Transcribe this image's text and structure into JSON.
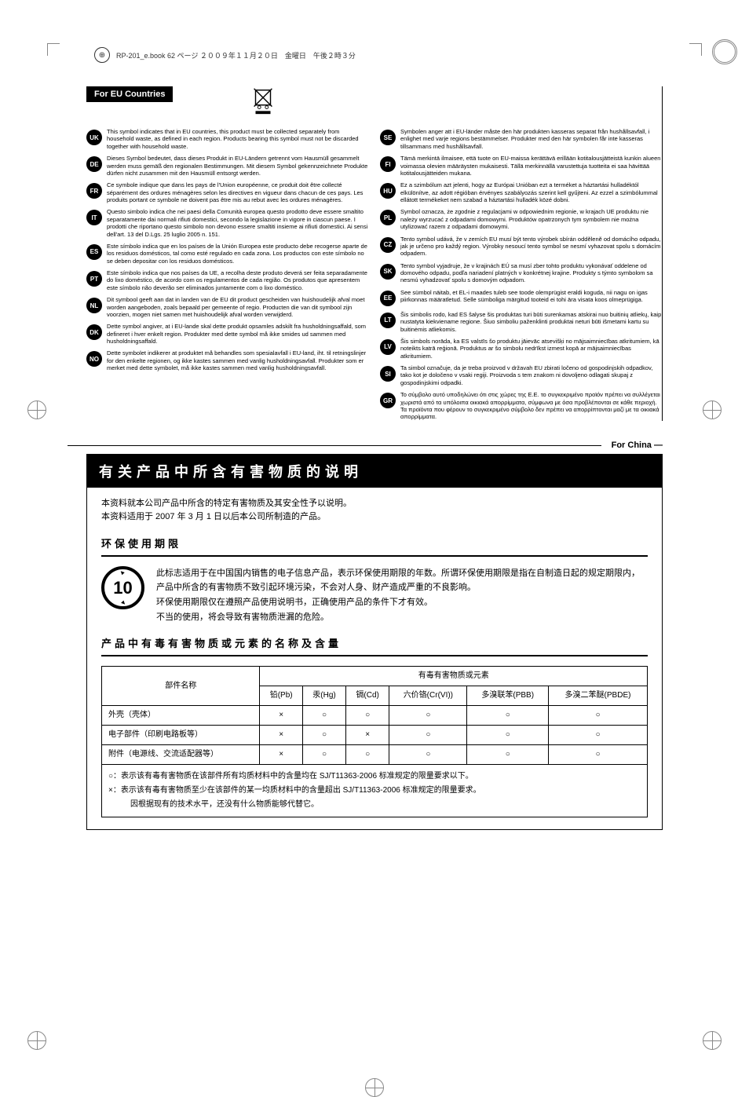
{
  "header": {
    "filename": "RP-201_e.book 62 ページ ２００９年１１月２０日　金曜日　午後２時３分"
  },
  "eu": {
    "badge": "For EU Countries",
    "left": [
      {
        "code": "UK",
        "text": "This symbol indicates that in EU countries, this product must be collected separately from household waste, as defined in each region. Products bearing this symbol must not be discarded together with household waste."
      },
      {
        "code": "DE",
        "text": "Dieses Symbol bedeutet, dass dieses Produkt in EU-Ländern getrennt vom Hausmüll gesammelt werden muss gemäß den regionalen Bestimmungen. Mit diesem Symbol gekennzeichnete Produkte dürfen nicht zusammen mit den Hausmüll entsorgt werden."
      },
      {
        "code": "FR",
        "text": "Ce symbole indique que dans les pays de l'Union européenne, ce produit doit être collecté séparément des ordures ménagères selon les directives en vigueur dans chacun de ces pays. Les produits portant ce symbole ne doivent pas être mis au rebut avec les ordures ménagères."
      },
      {
        "code": "IT",
        "text": "Questo simbolo indica che nei paesi della Comunità europea questo prodotto deve essere smaltito separatamente dai normali rifiuti domestici, secondo la legislazione in vigore in ciascun paese. I prodotti che riportano questo simbolo non devono essere smaltiti insieme ai rifiuti domestici. Ai sensi dell'art. 13 del D.Lgs. 25 luglio 2005 n. 151."
      },
      {
        "code": "ES",
        "text": "Este símbolo indica que en los países de la Unión Europea este producto debe recogerse aparte de los residuos domésticos, tal como esté regulado en cada zona. Los productos con este símbolo no se deben depositar con los residuos domésticos."
      },
      {
        "code": "PT",
        "text": "Este símbolo indica que nos países da UE, a recolha deste produto deverá ser feita separadamente do lixo doméstico, de acordo com os regulamentos de cada região. Os produtos que apresentem este símbolo não deverão ser eliminados juntamente com o lixo doméstico."
      },
      {
        "code": "NL",
        "text": "Dit symbool geeft aan dat in landen van de EU dit product gescheiden van huishoudelijk afval moet worden aangeboden, zoals bepaald per gemeente of regio. Producten die van dit symbool zijn voorzien, mogen niet samen met huishoudelijk afval worden verwijderd."
      },
      {
        "code": "DK",
        "text": "Dette symbol angiver, at i EU-lande skal dette produkt opsamles adskilt fra husholdningsaffald, som defineret i hver enkelt region. Produkter med dette symbol må ikke smides ud sammen med husholdningsaffald."
      },
      {
        "code": "NO",
        "text": "Dette symbolet indikerer at produktet må behandles som spesialavfall i EU-land, iht. til retningslinjer for den enkelte regionen, og ikke kastes sammen med vanlig husholdningsavfall. Produkter som er merket med dette symbolet, må ikke kastes sammen med vanlig husholdningsavfall."
      }
    ],
    "right": [
      {
        "code": "SE",
        "text": "Symbolen anger att i EU-länder måste den här produkten kasseras separat från hushållsavfall, i enlighet med varje regions bestämmelser. Produkter med den här symbolen får inte kasseras tillsammans med hushållsavfall."
      },
      {
        "code": "FI",
        "text": "Tämä merkintä ilmaisee, että tuote on EU-maissa kerättävä erillään kotitalousjätteistä kunkin alueen voimassa olevien määräysten mukaisesti. Tällä merkinnällä varustettuja tuotteita ei saa hävittää kotitalousjätteiden mukana."
      },
      {
        "code": "HU",
        "text": "Ez a szimbólum azt jelenti, hogy az Európai Unióban ezt a terméket a háztartási hulladéktól elkülönítve, az adott régióban érvényes szabályozás szerint kell gyűjteni. Az ezzel a szimbólummal ellátott termékeket nem szabad a háztartási hulladék közé dobni."
      },
      {
        "code": "PL",
        "text": "Symbol oznacza, że zgodnie z regulacjami w odpowiednim regionie, w krajach UE produktu nie należy wyrzucać z odpadami domowymi. Produktów opatrzonych tym symbolem nie można utylizować razem z odpadami domowymi."
      },
      {
        "code": "CZ",
        "text": "Tento symbol udává, že v zemích EU musí být tento výrobek sbírán odděleně od domácího odpadu, jak je určeno pro každý region. Výrobky nesoucí tento symbol se nesmí vyhazovat spolu s domácím odpadem."
      },
      {
        "code": "SK",
        "text": "Tento symbol vyjadruje, že v krajinách EÚ sa musí zber tohto produktu vykonávať oddelene od domového odpadu, podľa nariadení platných v konkrétnej krajine. Produkty s týmto symbolom sa nesmú vyhadzovať spolu s domovým odpadom."
      },
      {
        "code": "EE",
        "text": "See sümbol näitab, et EL-i maades tuleb see toode olemprügist eraldi koguda, nii nagu on igas piirkonnas määratletud. Selle sümboliga märgitud tooteid ei tohi ära visata koos olmeprügiga."
      },
      {
        "code": "LT",
        "text": "Šis simbolis rodo, kad ES šalyse šis produktas turi būti surenkamas atskirai nuo buitinių atliekų, kaip nustatyta kiekviename regione. Šiuo simboliu paženklinti produktai neturi būti išmetami kartu su buitinėmis atliekomis."
      },
      {
        "code": "LV",
        "text": "Šis simbols norāda, ka ES valstīs šo produktu jāievāc atsevišķi no mājsaimniecības atkritumiem, kā noteikts katrā reģionā. Produktus ar šo simbolu nedrīkst izmest kopā ar mājsaimniecības atkritumiem."
      },
      {
        "code": "SI",
        "text": "Ta simbol označuje, da je treba proizvod v državah EU zbirati ločeno od gospodinjskih odpadkov, tako kot je določeno v vsaki regiji. Proizvoda s tem znakom ni dovoljeno odlagati skupaj z gospodinjskimi odpadki."
      },
      {
        "code": "GR",
        "text": "Το σύμβολο αυτό υποδηλώνει ότι στις χώρες της Ε.Ε. το συγκεκριμένο προϊόν πρέπει να συλλέγεται χωριστά από τα υπόλοιπα οικιακά απορρίμματα, σύμφωνα με όσα προβλέπονται σε κάθε περιοχή. Τα προϊόντα που φέρουν το συγκεκριμένο σύμβολο δεν πρέπει να απορρίπτονται μαζί με τα οικιακά απορρίμματα."
      }
    ]
  },
  "china": {
    "label": "For China",
    "title": "有关产品中所含有害物质的说明",
    "intro1": "本资料就本公司产品中所含的特定有害物质及其安全性予以说明。",
    "intro2": "本资料适用于 2007 年 3 月 1 日以后本公司所制造的产品。",
    "sub1": "环保使用期限",
    "env_badge": "10",
    "env_text1": "此标志适用于在中国国内销售的电子信息产品，表示环保使用期限的年数。所谓环保使用期限是指在自制造日起的规定期限内，产品中所含的有害物质不致引起环境污染，不会对人身、财产造成严重的不良影响。",
    "env_text2": "环保使用期限仅在遵照产品使用说明书，正确使用产品的条件下才有效。",
    "env_text3": "不当的使用，将会导致有害物质泄漏的危险。",
    "sub2": "产品中有毒有害物质或元素的名称及含量",
    "table": {
      "header_main": "有毒有害物质或元素",
      "part_header": "部件名称",
      "cols": [
        "铅(Pb)",
        "汞(Hg)",
        "镉(Cd)",
        "六价铬(Cr(VI))",
        "多溴联苯(PBB)",
        "多溴二苯醚(PBDE)"
      ],
      "rows": [
        {
          "part": "外壳（壳体）",
          "vals": [
            "×",
            "○",
            "○",
            "○",
            "○",
            "○"
          ]
        },
        {
          "part": "电子部件（印刷电路板等）",
          "vals": [
            "×",
            "○",
            "×",
            "○",
            "○",
            "○"
          ]
        },
        {
          "part": "附件（电源线、交流适配器等）",
          "vals": [
            "×",
            "○",
            "○",
            "○",
            "○",
            "○"
          ]
        }
      ]
    },
    "note1": "○：表示该有毒有害物质在该部件所有均质材料中的含量均在 SJ/T11363-2006 标准规定的限量要求以下。",
    "note2": "×：表示该有毒有害物质至少在该部件的某一均质材料中的含量超出 SJ/T11363-2006 标准规定的限量要求。",
    "note3": "因根据现有的技术水平，还没有什么物质能够代替它。"
  }
}
